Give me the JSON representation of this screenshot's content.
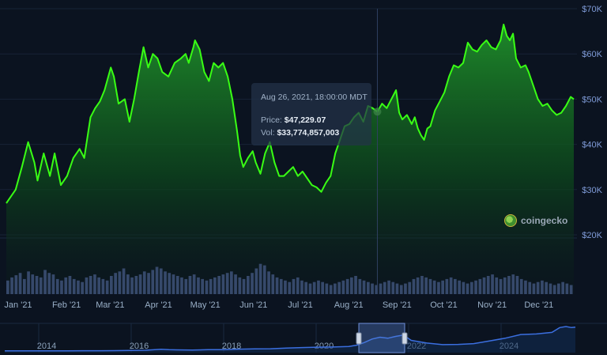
{
  "chart_data": {
    "type": "area",
    "title": "",
    "xlabel": "",
    "ylabel": "",
    "y_ticks": [
      "$20K",
      "$30K",
      "$40K",
      "$50K",
      "$60K",
      "$70K"
    ],
    "ylim": [
      20000,
      70000
    ],
    "x_ticks": [
      "Jan '21",
      "Feb '21",
      "Mar '21",
      "Apr '21",
      "May '21",
      "Jun '21",
      "Jul '21",
      "Aug '21",
      "Sep '21",
      "Oct '21",
      "Nov '21",
      "Dec '21"
    ],
    "series": [
      {
        "values": [
          [
            0,
            27000
          ],
          [
            6,
            30000
          ],
          [
            10,
            35000
          ],
          [
            14,
            40500
          ],
          [
            18,
            36000
          ],
          [
            20,
            32000
          ],
          [
            24,
            38000
          ],
          [
            28,
            33000
          ],
          [
            31,
            38000
          ],
          [
            35,
            31000
          ],
          [
            39,
            33000
          ],
          [
            43,
            37000
          ],
          [
            47,
            39000
          ],
          [
            50,
            37000
          ],
          [
            54,
            46000
          ],
          [
            57,
            48000
          ],
          [
            60,
            49500
          ],
          [
            63,
            52000
          ],
          [
            67,
            57000
          ],
          [
            69,
            55000
          ],
          [
            72,
            49000
          ],
          [
            76,
            50000
          ],
          [
            79,
            45000
          ],
          [
            82,
            50000
          ],
          [
            85,
            56000
          ],
          [
            88,
            61500
          ],
          [
            91,
            57000
          ],
          [
            94,
            60000
          ],
          [
            97,
            59000
          ],
          [
            100,
            56000
          ],
          [
            104,
            55000
          ],
          [
            108,
            58000
          ],
          [
            112,
            59000
          ],
          [
            115,
            60000
          ],
          [
            117,
            58000
          ],
          [
            120,
            61500
          ],
          [
            121,
            63000
          ],
          [
            124,
            61000
          ],
          [
            127,
            56000
          ],
          [
            130,
            54000
          ],
          [
            133,
            58000
          ],
          [
            136,
            57000
          ],
          [
            139,
            58000
          ],
          [
            142,
            55000
          ],
          [
            145,
            50000
          ],
          [
            148,
            43000
          ],
          [
            150,
            37500
          ],
          [
            152,
            35000
          ],
          [
            155,
            37000
          ],
          [
            158,
            38500
          ],
          [
            160,
            36000
          ],
          [
            163,
            33500
          ],
          [
            166,
            38000
          ],
          [
            169,
            40500
          ],
          [
            172,
            36000
          ],
          [
            175,
            33000
          ],
          [
            178,
            33000
          ],
          [
            181,
            34000
          ],
          [
            184,
            35000
          ],
          [
            187,
            33000
          ],
          [
            190,
            34000
          ],
          [
            193,
            32500
          ],
          [
            196,
            31000
          ],
          [
            199,
            30500
          ],
          [
            202,
            29500
          ],
          [
            205,
            31500
          ],
          [
            208,
            33000
          ],
          [
            211,
            38000
          ],
          [
            214,
            41000
          ],
          [
            217,
            44000
          ],
          [
            220,
            44500
          ],
          [
            223,
            46000
          ],
          [
            226,
            47000
          ],
          [
            229,
            45000
          ],
          [
            232,
            48500
          ],
          [
            235,
            48000
          ],
          [
            238,
            47229
          ],
          [
            241,
            49000
          ],
          [
            244,
            48000
          ],
          [
            247,
            50000
          ],
          [
            250,
            52000
          ],
          [
            252,
            47000
          ],
          [
            254,
            45500
          ],
          [
            257,
            46500
          ],
          [
            260,
            44500
          ],
          [
            262,
            46000
          ],
          [
            264,
            43500
          ],
          [
            266,
            42000
          ],
          [
            268,
            41000
          ],
          [
            270,
            43500
          ],
          [
            272,
            44000
          ],
          [
            275,
            47500
          ],
          [
            278,
            49500
          ],
          [
            281,
            51500
          ],
          [
            284,
            55000
          ],
          [
            287,
            57500
          ],
          [
            290,
            57000
          ],
          [
            293,
            58000
          ],
          [
            296,
            62500
          ],
          [
            299,
            61000
          ],
          [
            302,
            60500
          ],
          [
            305,
            62000
          ],
          [
            308,
            63000
          ],
          [
            311,
            61500
          ],
          [
            314,
            61000
          ],
          [
            317,
            63000
          ],
          [
            319,
            66500
          ],
          [
            321,
            64000
          ],
          [
            323,
            63000
          ],
          [
            325,
            64500
          ],
          [
            327,
            59000
          ],
          [
            330,
            57000
          ],
          [
            333,
            57500
          ],
          [
            335,
            56000
          ],
          [
            338,
            53000
          ],
          [
            341,
            50000
          ],
          [
            344,
            48500
          ],
          [
            347,
            49000
          ],
          [
            350,
            47500
          ],
          [
            353,
            46500
          ],
          [
            356,
            47000
          ],
          [
            359,
            48500
          ],
          [
            362,
            50500
          ],
          [
            364,
            50000
          ]
        ]
      }
    ],
    "tooltip": {
      "date": "Aug 26, 2021, 18:00:00 MDT",
      "price_label": "Price:",
      "price_value": "$47,229.07",
      "vol_label": "Vol:",
      "vol_value": "$33,774,857,003"
    },
    "volume_bars": [
      18,
      22,
      25,
      28,
      20,
      30,
      26,
      24,
      22,
      32,
      28,
      26,
      20,
      18,
      22,
      24,
      20,
      18,
      16,
      22,
      24,
      26,
      22,
      20,
      18,
      24,
      28,
      30,
      34,
      26,
      22,
      24,
      26,
      30,
      28,
      32,
      36,
      34,
      30,
      28,
      26,
      24,
      22,
      20,
      24,
      26,
      22,
      20,
      18,
      20,
      22,
      24,
      26,
      28,
      30,
      26,
      22,
      20,
      24,
      28,
      34,
      40,
      38,
      30,
      26,
      22,
      20,
      18,
      16,
      20,
      22,
      18,
      16,
      14,
      16,
      18,
      16,
      14,
      12,
      14,
      16,
      18,
      20,
      22,
      24,
      20,
      18,
      16,
      14,
      12,
      14,
      16,
      18,
      16,
      14,
      12,
      14,
      16,
      20,
      22,
      24,
      22,
      20,
      18,
      16,
      18,
      20,
      22,
      20,
      18,
      16,
      14,
      16,
      18,
      20,
      22,
      24,
      26,
      22,
      20,
      22,
      24,
      26,
      24,
      20,
      18,
      16,
      14,
      16,
      18,
      16,
      14,
      12,
      14,
      16,
      14,
      12
    ],
    "navigator": {
      "ticks": [
        "2014",
        "2016",
        "2018",
        "2020",
        "2022",
        "2024"
      ],
      "values": [
        [
          0,
          0.5
        ],
        [
          20,
          0.5
        ],
        [
          40,
          0.7
        ],
        [
          60,
          1.0
        ],
        [
          80,
          1.0
        ],
        [
          100,
          1.1
        ],
        [
          120,
          1.2
        ],
        [
          140,
          1.6
        ],
        [
          160,
          2.2
        ],
        [
          180,
          3.0
        ],
        [
          200,
          6.5
        ],
        [
          210,
          5.0
        ],
        [
          220,
          4.5
        ],
        [
          240,
          4.0
        ],
        [
          260,
          5.0
        ],
        [
          280,
          5.2
        ],
        [
          300,
          7.0
        ],
        [
          320,
          8.0
        ],
        [
          340,
          8.5
        ],
        [
          360,
          11.0
        ],
        [
          380,
          13.0
        ],
        [
          400,
          14.5
        ],
        [
          420,
          15.0
        ],
        [
          440,
          17.0
        ],
        [
          450,
          22.0
        ],
        [
          460,
          32.0
        ],
        [
          470,
          45.0
        ],
        [
          480,
          52.0
        ],
        [
          490,
          48.0
        ],
        [
          500,
          55.0
        ],
        [
          510,
          60.0
        ],
        [
          520,
          40.0
        ],
        [
          540,
          30.0
        ],
        [
          560,
          24.0
        ],
        [
          580,
          25.0
        ],
        [
          600,
          28.0
        ],
        [
          620,
          38.0
        ],
        [
          640,
          48.0
        ],
        [
          660,
          62.0
        ],
        [
          680,
          64.0
        ],
        [
          700,
          70.0
        ],
        [
          710,
          88.0
        ],
        [
          718,
          92.0
        ],
        [
          725,
          88.0
        ],
        [
          730,
          90.0
        ]
      ]
    }
  },
  "watermark": {
    "text": "coingecko",
    "logo": "gecko-logo-icon"
  },
  "colors": {
    "line": "#39ff14",
    "background": "#0b1320",
    "grid": "#172336"
  }
}
